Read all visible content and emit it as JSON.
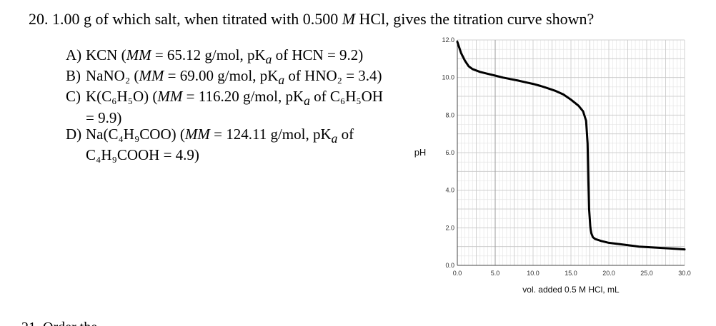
{
  "question": {
    "title_pre": "20. 1.00 g of which salt, when titrated with 0.500 ",
    "title_M": "M",
    "title_post": " HCl, gives the titration curve shown?"
  },
  "choices": [
    {
      "letter": "A)",
      "text": "KCN (",
      "mm": "MM",
      "rest": " = 65.12 g/mol, pK",
      "a": "a",
      "tail": " of HCN = 9.2)"
    },
    {
      "letter": "B)",
      "text": "NaNO₂ (",
      "mm": "MM",
      "rest": " = 69.00 g/mol, pK",
      "a": "a",
      "tail": " of HNO₂ = 3.4)"
    },
    {
      "letter": "C)",
      "text": "K(C₆H₅O) (",
      "mm": "MM",
      "rest": " = 116.20 g/mol, pK",
      "a": "a",
      "tail": " of C₆H₅OH",
      "cont": "= 9.9)"
    },
    {
      "letter": "D)",
      "text": "Na(C₄H₉COO) (",
      "mm": "MM",
      "rest": " = 124.11 g/mol, pK",
      "a": "a",
      "tail": " of",
      "cont": "C₄H₉COOH = 4.9)"
    }
  ],
  "chart_data": {
    "type": "line",
    "xlabel": "vol. added 0.5 M HCl, mL",
    "ylabel": "pH",
    "xlim": [
      0,
      30
    ],
    "ylim": [
      0,
      12
    ],
    "x_ticks": [
      "0.0",
      "5.0",
      "10.0",
      "15.0",
      "20.0",
      "25.0",
      "30.0"
    ],
    "y_ticks": [
      "0.0",
      "2.0",
      "4.0",
      "6.0",
      "8.0",
      "10.0",
      "12.0"
    ],
    "grid": true,
    "series": [
      {
        "x": [
          0.0,
          0.5,
          1,
          1.5,
          2,
          3,
          4,
          5,
          6,
          7,
          8,
          9,
          10,
          11,
          12,
          13,
          14,
          15,
          16,
          16.6,
          17.0,
          17.2,
          17.3,
          17.4,
          17.5,
          17.55,
          17.6,
          17.7,
          17.9,
          18.2,
          19,
          20,
          22,
          24,
          26,
          28,
          30
        ],
        "y": [
          11.9,
          11.3,
          10.9,
          10.6,
          10.45,
          10.3,
          10.2,
          10.1,
          10.0,
          9.92,
          9.84,
          9.75,
          9.66,
          9.55,
          9.42,
          9.28,
          9.1,
          8.82,
          8.5,
          8.2,
          7.7,
          6.5,
          4.5,
          3.0,
          2.4,
          2.1,
          1.9,
          1.7,
          1.5,
          1.4,
          1.3,
          1.2,
          1.1,
          1.0,
          0.95,
          0.9,
          0.85
        ]
      }
    ]
  },
  "next_question_partial": "21. Order the ... "
}
